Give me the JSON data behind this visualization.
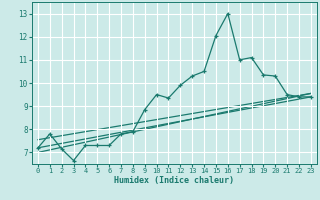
{
  "title": "",
  "xlabel": "Humidex (Indice chaleur)",
  "bg_color": "#cceae8",
  "grid_color": "#ffffff",
  "line_color": "#1a7a6e",
  "xlim": [
    -0.5,
    23.5
  ],
  "ylim": [
    6.5,
    13.5
  ],
  "yticks": [
    7,
    8,
    9,
    10,
    11,
    12,
    13
  ],
  "xticks": [
    0,
    1,
    2,
    3,
    4,
    5,
    6,
    7,
    8,
    9,
    10,
    11,
    12,
    13,
    14,
    15,
    16,
    17,
    18,
    19,
    20,
    21,
    22,
    23
  ],
  "line1_x": [
    0,
    1,
    2,
    3,
    4,
    5,
    6,
    7,
    8,
    9,
    10,
    11,
    12,
    13,
    14,
    15,
    16,
    17,
    18,
    19,
    20,
    21,
    22,
    23
  ],
  "line1_y": [
    7.2,
    7.8,
    7.15,
    6.65,
    7.3,
    7.3,
    7.3,
    7.8,
    7.9,
    8.85,
    9.5,
    9.35,
    9.9,
    10.3,
    10.5,
    12.05,
    13.0,
    11.0,
    11.1,
    10.35,
    10.3,
    9.5,
    9.4,
    9.4
  ],
  "line2_x": [
    0,
    23
  ],
  "line2_y": [
    7.55,
    9.55
  ],
  "line3_x": [
    0,
    23
  ],
  "line3_y": [
    7.2,
    9.4
  ],
  "line4_x": [
    0,
    23
  ],
  "line4_y": [
    7.0,
    9.55
  ]
}
